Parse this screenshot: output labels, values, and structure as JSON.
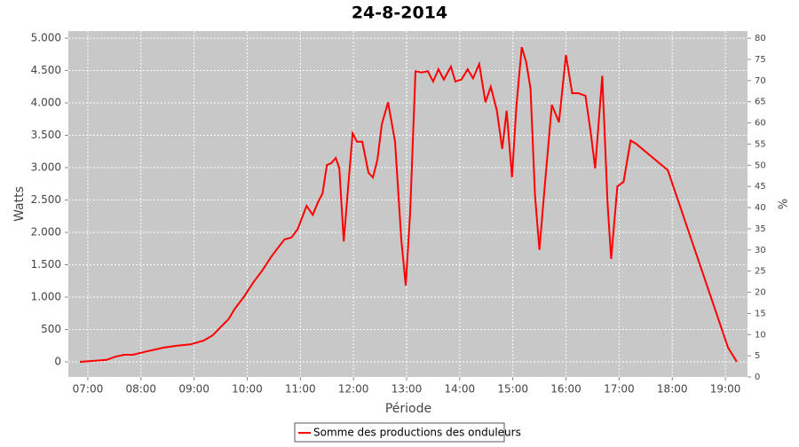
{
  "chart_data": {
    "type": "line",
    "title": "24-8-2014",
    "x_label": "Période",
    "y_label": "Watts",
    "y2_label": "%",
    "x": [
      "06:51",
      "07:21",
      "07:31",
      "07:41",
      "07:51",
      "08:06",
      "08:16",
      "08:26",
      "08:41",
      "08:56",
      "09:11",
      "09:21",
      "09:31",
      "09:39",
      "09:46",
      "09:56",
      "10:07",
      "10:17",
      "10:27",
      "10:34",
      "10:42",
      "10:50",
      "10:57",
      "11:07",
      "11:14",
      "11:20",
      "11:25",
      "11:30",
      "11:35",
      "11:40",
      "11:44",
      "11:49",
      "11:54",
      "11:59",
      "12:04",
      "12:10",
      "12:17",
      "12:22",
      "12:27",
      "12:32",
      "12:39",
      "12:47",
      "12:54",
      "12:59",
      "13:04",
      "13:10",
      "13:17",
      "13:24",
      "13:30",
      "13:36",
      "13:42",
      "13:50",
      "13:55",
      "14:02",
      "14:09",
      "14:15",
      "14:22",
      "14:29",
      "14:35",
      "14:42",
      "14:48",
      "14:53",
      "14:59",
      "15:04",
      "15:10",
      "15:15",
      "15:20",
      "15:25",
      "15:30",
      "15:36",
      "15:44",
      "15:52",
      "16:00",
      "16:07",
      "16:14",
      "16:22",
      "16:28",
      "16:33",
      "16:41",
      "16:47",
      "16:51",
      "16:58",
      "17:05",
      "17:13",
      "17:19",
      "17:55",
      "19:03",
      "19:13"
    ],
    "series": [
      {
        "name": "Somme des productions des onduleurs",
        "color": "#ff0000",
        "values": [
          0,
          30,
          80,
          110,
          110,
          160,
          190,
          220,
          250,
          270,
          330,
          410,
          550,
          660,
          820,
          1000,
          1230,
          1410,
          1620,
          1750,
          1890,
          1920,
          2050,
          2410,
          2270,
          2470,
          2600,
          3040,
          3070,
          3150,
          2990,
          1860,
          2710,
          3530,
          3400,
          3400,
          2920,
          2850,
          3120,
          3670,
          4010,
          3400,
          1890,
          1180,
          2300,
          4490,
          4470,
          4490,
          4330,
          4520,
          4360,
          4560,
          4330,
          4360,
          4520,
          4380,
          4600,
          4010,
          4250,
          3880,
          3290,
          3880,
          2850,
          3950,
          4860,
          4630,
          4220,
          2580,
          1730,
          2710,
          3970,
          3700,
          4740,
          4150,
          4150,
          4110,
          3530,
          2990,
          4420,
          2440,
          1590,
          2710,
          2780,
          3420,
          3370,
          2960,
          220,
          0
        ]
      }
    ],
    "xlim": [
      "06:38",
      "19:25"
    ],
    "xticks": [
      "07:00",
      "08:00",
      "09:00",
      "10:00",
      "11:00",
      "12:00",
      "13:00",
      "14:00",
      "15:00",
      "16:00",
      "17:00",
      "18:00",
      "19:00"
    ],
    "ylim": [
      -233,
      5110
    ],
    "yticks": [
      0,
      500,
      {
        "value": 1000,
        "label": "1.000"
      },
      {
        "value": 1500,
        "label": "1.500"
      },
      {
        "value": 2000,
        "label": "2.000"
      },
      {
        "value": 2500,
        "label": "2.500"
      },
      {
        "value": 3000,
        "label": "3.000"
      },
      {
        "value": 3500,
        "label": "3.500"
      },
      {
        "value": 4000,
        "label": "4.000"
      },
      {
        "value": 4500,
        "label": "4.500"
      },
      {
        "value": 5000,
        "label": "5.000"
      }
    ],
    "y2lim": [
      0,
      81.7
    ],
    "y2ticks": [
      0,
      5,
      10,
      15,
      20,
      25,
      30,
      35,
      40,
      45,
      50,
      55,
      60,
      65,
      70,
      75,
      80
    ],
    "grid": true,
    "legend": "bottom"
  }
}
